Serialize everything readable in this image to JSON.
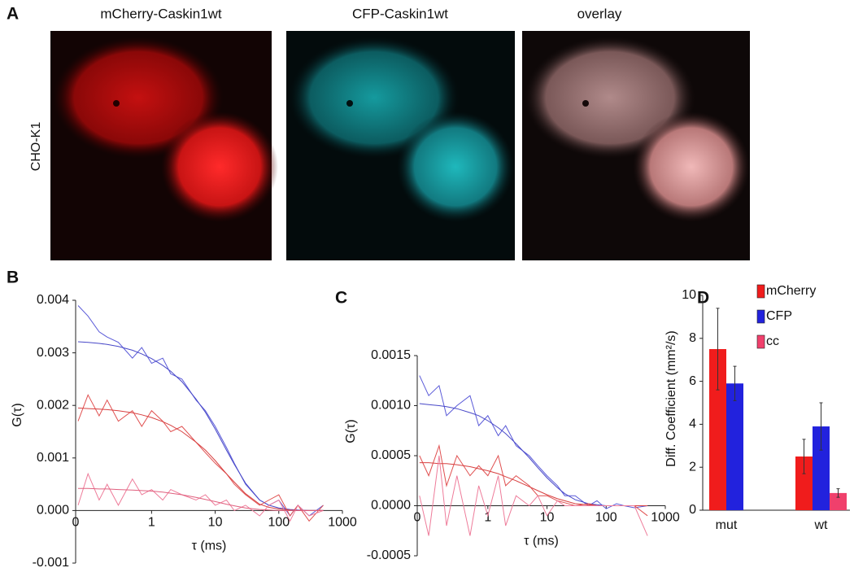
{
  "figure": {
    "panel": "A",
    "image_titles": [
      "mCherry-Caskin1wt",
      "CFP-Caskin1wt",
      "overlay"
    ],
    "row_label": "CHO-K1"
  },
  "chart_data": [
    {
      "type": "line",
      "panel": "B",
      "xlabel": "τ (ms)",
      "ylabel": "G(τ)",
      "xscale": "log",
      "x": [
        0.07,
        0.1,
        0.15,
        0.2,
        0.3,
        0.5,
        0.7,
        1,
        1.5,
        2,
        3,
        5,
        7,
        10,
        15,
        20,
        30,
        50,
        70,
        100,
        150,
        200,
        300,
        500
      ],
      "xlim": [
        0.064,
        1000
      ],
      "xticks": [
        {
          "value": 0.064,
          "label": "0"
        },
        1,
        10,
        100,
        1000
      ],
      "ylim": [
        -0.001,
        0.004
      ],
      "yticks": [
        -0.001,
        {
          "value": 0,
          "label": "0.000"
        },
        0.001,
        0.002,
        0.003,
        0.004
      ],
      "series": [
        {
          "color": "#5a5ad8",
          "values": [
            0.0039,
            0.0037,
            0.0034,
            0.0033,
            0.0032,
            0.0029,
            0.0031,
            0.0028,
            0.0029,
            0.0026,
            0.0025,
            0.0021,
            0.0019,
            0.0016,
            0.0012,
            0.0009,
            0.0005,
            0.0002,
            0.0001,
            0.0002,
            -0.0001,
            0.0001,
            -0.0001,
            0.0001
          ]
        },
        {
          "color": "#4848c8",
          "values": [
            0.00321,
            0.0032,
            0.00318,
            0.00316,
            0.00312,
            0.00305,
            0.00298,
            0.00289,
            0.00276,
            0.00265,
            0.00245,
            0.00212,
            0.00187,
            0.00155,
            0.00115,
            0.00088,
            0.00052,
            0.0002,
            0.0001,
            5e-05,
            2e-05,
            1e-05,
            0,
            0
          ]
        },
        {
          "color": "#e05050",
          "values": [
            0.0017,
            0.0022,
            0.0018,
            0.0021,
            0.0017,
            0.0019,
            0.0016,
            0.0019,
            0.0017,
            0.0015,
            0.0016,
            0.0013,
            0.0011,
            0.0009,
            0.0007,
            0.0005,
            0.0003,
            0.0001,
            0.0002,
            0.0003,
            -0.0001,
            0.0001,
            -0.0002,
            0.0001
          ]
        },
        {
          "color": "#d84040",
          "values": [
            0.00195,
            0.00194,
            0.00193,
            0.00192,
            0.0019,
            0.00186,
            0.00182,
            0.00177,
            0.00169,
            0.00162,
            0.0015,
            0.0013,
            0.00115,
            0.00095,
            0.0007,
            0.00054,
            0.00032,
            0.00012,
            6e-05,
            3e-05,
            1e-05,
            0,
            0,
            0
          ]
        },
        {
          "color": "#ee7c9a",
          "values": [
            0.0001,
            0.0007,
            0.0002,
            0.0005,
            0.0001,
            0.0006,
            0.0003,
            0.0004,
            0.0002,
            0.0004,
            0.0003,
            0.0002,
            0.0003,
            0.0001,
            0.0002,
            0,
            0.0001,
            -0.0001,
            0.0001,
            0.0002,
            -0.0002,
            0.0001,
            -0.0001,
            0
          ]
        },
        {
          "color": "#e0607e",
          "values": [
            0.00042,
            0.00042,
            0.00041,
            0.00041,
            0.0004,
            0.00039,
            0.00038,
            0.00037,
            0.00035,
            0.00033,
            0.0003,
            0.00025,
            0.00021,
            0.00017,
            0.00012,
            9e-05,
            5e-05,
            2e-05,
            1e-05,
            0,
            0,
            0,
            0,
            0
          ]
        }
      ]
    },
    {
      "type": "line",
      "panel": "C",
      "xlabel": "τ (ms)",
      "ylabel": "G(τ)",
      "xscale": "log",
      "x": [
        0.07,
        0.1,
        0.15,
        0.2,
        0.3,
        0.5,
        0.7,
        1,
        1.5,
        2,
        3,
        5,
        7,
        10,
        15,
        20,
        30,
        50,
        70,
        100,
        150,
        200,
        300,
        500
      ],
      "xlim": [
        0.064,
        1000
      ],
      "xticks": [
        {
          "value": 0.064,
          "label": "0"
        },
        1,
        10,
        100,
        1000
      ],
      "ylim": [
        -0.0005,
        0.0015
      ],
      "yticks": [
        -0.0005,
        {
          "value": 0,
          "label": "0.0000"
        },
        0.0005,
        {
          "value": 0.001,
          "label": "0.0010"
        },
        0.0015
      ],
      "series": [
        {
          "color": "#5a5ad8",
          "values": [
            0.0013,
            0.0011,
            0.0012,
            0.0009,
            0.001,
            0.0011,
            0.0008,
            0.0009,
            0.0007,
            0.0008,
            0.0006,
            0.0005,
            0.0004,
            0.0003,
            0.0002,
            0.0001,
            0.0001,
            0,
            5e-05,
            -3e-05,
            2e-05,
            0,
            -2e-05,
            0
          ]
        },
        {
          "color": "#4848c8",
          "values": [
            0.00102,
            0.00101,
            0.001,
            0.00099,
            0.00097,
            0.00093,
            0.0009,
            0.00085,
            0.00078,
            0.00072,
            0.00062,
            0.00048,
            0.00038,
            0.00028,
            0.00018,
            0.00012,
            6e-05,
            2e-05,
            1e-05,
            0,
            0,
            0,
            0,
            0
          ]
        },
        {
          "color": "#e05050",
          "values": [
            0.0005,
            0.0003,
            0.0006,
            0.0002,
            0.0005,
            0.0003,
            0.0004,
            0.0003,
            0.0005,
            0.0002,
            0.0003,
            0.0002,
            0.0001,
            0.0001,
            5e-05,
            3e-05,
            0,
            2e-05,
            0,
            0,
            0,
            0,
            0,
            -0.0001
          ]
        },
        {
          "color": "#d84040",
          "values": [
            0.00043,
            0.00043,
            0.00042,
            0.00042,
            0.00041,
            0.00039,
            0.00037,
            0.00035,
            0.00032,
            0.00029,
            0.00025,
            0.00019,
            0.00015,
            0.00011,
            7e-05,
            5e-05,
            2e-05,
            1e-05,
            0,
            0,
            0,
            0,
            0,
            0
          ]
        },
        {
          "color": "#ee7c9a",
          "values": [
            0.0001,
            -0.0003,
            0.0005,
            -0.0002,
            0.0003,
            -0.0003,
            0.0002,
            -0.0001,
            0.0003,
            -0.0002,
            0.0001,
            0,
            0.0001,
            -0.0001,
            5e-05,
            0,
            0,
            0,
            0,
            0,
            0,
            0,
            0,
            -0.0003
          ]
        }
      ]
    },
    {
      "type": "bar",
      "panel": "D",
      "ylabel": "Diff. Coefficient (mm²/s)",
      "legend": "upper right",
      "categories": [
        "mut",
        "wt"
      ],
      "ylim": [
        0,
        10
      ],
      "yticks": [
        0,
        2,
        4,
        6,
        8,
        10
      ],
      "series": [
        {
          "name": "mCherry",
          "color": "#f01c1c",
          "values": [
            7.5,
            2.5
          ],
          "errors": [
            1.9,
            0.8
          ]
        },
        {
          "name": "CFP",
          "color": "#2222dd",
          "values": [
            5.9,
            3.9
          ],
          "errors": [
            0.8,
            1.1
          ]
        },
        {
          "name": "cc",
          "color": "#f0406c",
          "values": [
            null,
            0.8
          ],
          "errors": [
            null,
            0.2
          ]
        }
      ]
    }
  ]
}
